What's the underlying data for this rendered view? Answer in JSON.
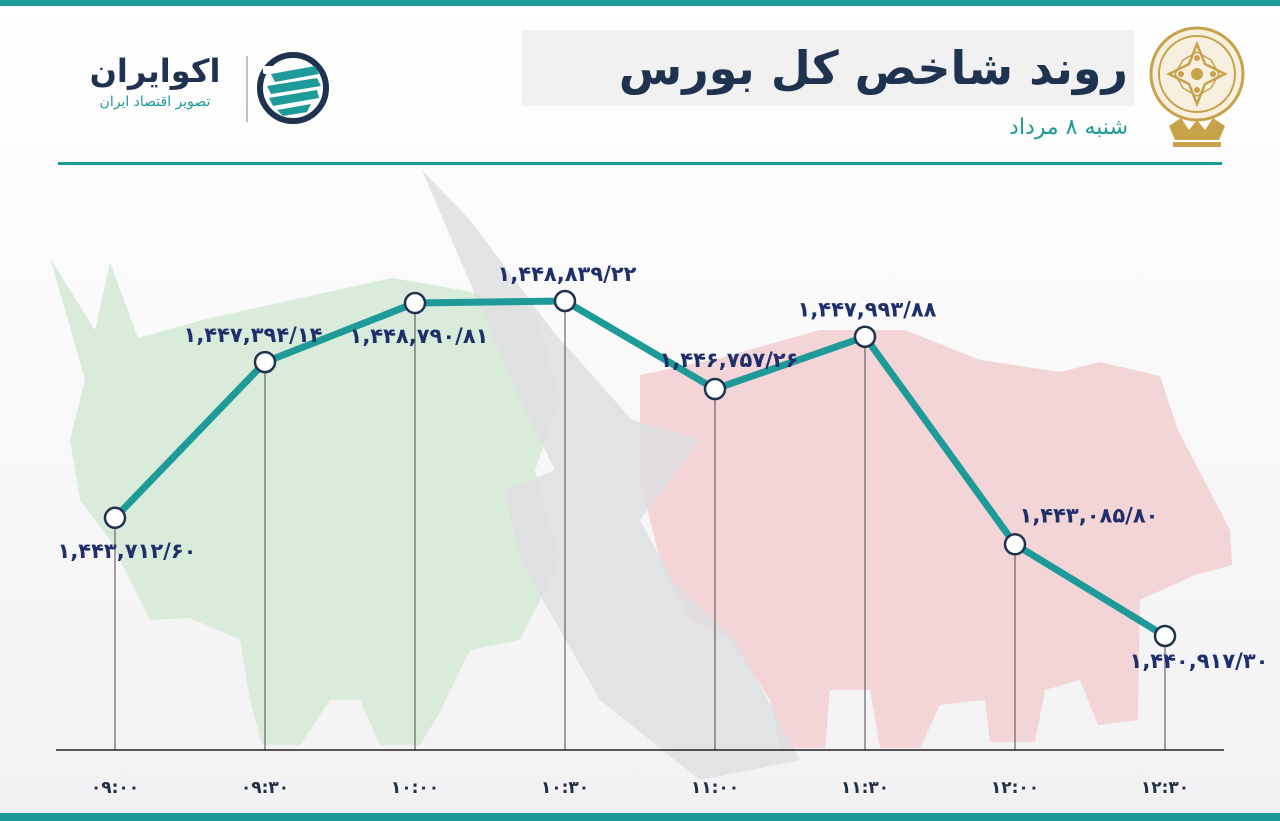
{
  "header": {
    "title": "روند شاخص کل بورس",
    "subtitle": "شنبه ۸ مرداد"
  },
  "logo": {
    "name": "اکوایران",
    "tagline": "تصویر اقتصاد ایران"
  },
  "colors": {
    "accent": "#1e9b98",
    "navy": "#1f3250",
    "label": "#1f2f6b",
    "bull": "#d9ecdc",
    "bear": "#f3d5d7",
    "arrow": "#dedfe1"
  },
  "chart_data": {
    "type": "line",
    "categories": [
      "۰۹:۰۰",
      "۰۹:۳۰",
      "۱۰:۰۰",
      "۱۰:۳۰",
      "۱۱:۰۰",
      "۱۱:۳۰",
      "۱۲:۰۰",
      "۱۲:۳۰"
    ],
    "values": [
      1443712.6,
      1447394.14,
      1448790.81,
      1448839.22,
      1446757.26,
      1447993.88,
      1443085.8,
      1440917.3
    ],
    "value_labels": [
      "۱,۴۴۳,۷۱۲/۶۰",
      "۱,۴۴۷,۳۹۴/۱۴",
      "۱,۴۴۸,۷۹۰/۸۱",
      "۱,۴۴۸,۸۳۹/۲۲",
      "۱,۴۴۶,۷۵۷/۲۶",
      "۱,۴۴۷,۹۹۳/۸۸",
      "۱,۴۴۳,۰۸۵/۸۰",
      "۱,۴۴۰,۹۱۷/۳۰"
    ],
    "title": "روند شاخص کل بورس",
    "xlabel": "",
    "ylabel": "",
    "grid": false,
    "legend": "none"
  }
}
